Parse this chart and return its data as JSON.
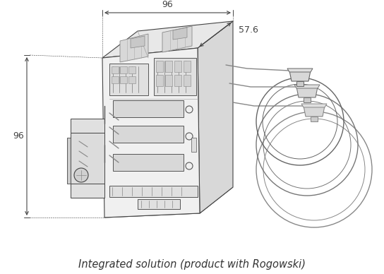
{
  "bg_color": "#ffffff",
  "line_color": "#444444",
  "dim_color": "#444444",
  "fill_front": "#f0f0f0",
  "fill_top": "#e8e8e8",
  "fill_right": "#d8d8d8",
  "fill_side_left": "#e2e2e2",
  "caption": "Integrated solution (product with Rogowski)",
  "caption_fontsize": 10.5,
  "caption_color": "#333333",
  "dim_96_top": "96",
  "dim_57_6": "57.6",
  "dim_96_left": "96",
  "figsize": [
    5.44,
    3.88
  ],
  "dpi": 100
}
